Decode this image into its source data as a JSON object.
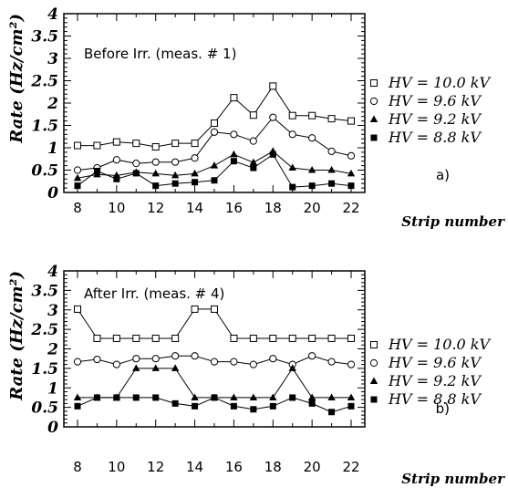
{
  "chart_data": [
    {
      "type": "line",
      "title": "Before Irr. (meas. # 1)",
      "panel_label": "a)",
      "xlabel": "Strip number",
      "ylabel": "Rate (Hz/cm²)",
      "xlim": [
        7.3,
        22.7
      ],
      "ylim": [
        0,
        4
      ],
      "xticks": [
        "8",
        "10",
        "12",
        "14",
        "16",
        "18",
        "20",
        "22"
      ],
      "yticks": [
        "0",
        "0.5",
        "1",
        "1.5",
        "2",
        "2.5",
        "3",
        "3.5",
        "4"
      ],
      "x": [
        8,
        9,
        10,
        11,
        12,
        13,
        14,
        15,
        16,
        17,
        18,
        19,
        20,
        21,
        22
      ],
      "series": [
        {
          "name": "HV = 10.0 kV",
          "marker": "open-square",
          "values": [
            1.05,
            1.05,
            1.13,
            1.1,
            1.02,
            1.1,
            1.1,
            1.55,
            2.12,
            1.73,
            2.38,
            1.72,
            1.72,
            1.65,
            1.6
          ]
        },
        {
          "name": "HV = 9.6 kV",
          "marker": "open-circle",
          "values": [
            0.5,
            0.55,
            0.73,
            0.65,
            0.68,
            0.68,
            0.77,
            1.35,
            1.3,
            1.15,
            1.68,
            1.3,
            1.22,
            0.92,
            0.82
          ]
        },
        {
          "name": "HV = 9.2 kV",
          "marker": "filled-triangle",
          "values": [
            0.32,
            0.4,
            0.38,
            0.45,
            0.42,
            0.38,
            0.42,
            0.6,
            0.85,
            0.67,
            0.92,
            0.55,
            0.5,
            0.5,
            0.42
          ]
        },
        {
          "name": "HV = 8.8 kV",
          "marker": "filled-square",
          "values": [
            0.15,
            0.48,
            0.3,
            0.43,
            0.15,
            0.2,
            0.23,
            0.27,
            0.7,
            0.55,
            0.85,
            0.12,
            0.15,
            0.2,
            0.15
          ]
        }
      ]
    },
    {
      "type": "line",
      "title": "After Irr. (meas. # 4)",
      "panel_label": "b)",
      "xlabel": "Strip number",
      "ylabel": "Rate (Hz/cm²)",
      "xlim": [
        7.3,
        22.7
      ],
      "ylim": [
        0,
        4
      ],
      "xticks": [
        "8",
        "10",
        "12",
        "14",
        "16",
        "18",
        "20",
        "22"
      ],
      "yticks": [
        "0",
        "0.5",
        "1",
        "1.5",
        "2",
        "2.5",
        "3",
        "3.5",
        "4"
      ],
      "x": [
        8,
        9,
        10,
        11,
        12,
        13,
        14,
        15,
        16,
        17,
        18,
        19,
        20,
        21,
        22
      ],
      "series": [
        {
          "name": "HV = 10.0 kV",
          "marker": "open-square",
          "values": [
            3.02,
            2.27,
            2.27,
            2.27,
            2.27,
            2.27,
            3.02,
            3.02,
            2.27,
            2.27,
            2.27,
            2.27,
            2.27,
            2.27,
            2.27
          ]
        },
        {
          "name": "HV = 9.6 kV",
          "marker": "open-circle",
          "values": [
            1.67,
            1.73,
            1.6,
            1.75,
            1.75,
            1.82,
            1.82,
            1.67,
            1.67,
            1.6,
            1.75,
            1.6,
            1.82,
            1.67,
            1.6
          ]
        },
        {
          "name": "HV = 9.2 kV",
          "marker": "filled-triangle",
          "values": [
            0.75,
            0.75,
            0.75,
            1.5,
            1.5,
            1.5,
            0.75,
            0.75,
            0.75,
            0.75,
            0.75,
            1.5,
            0.75,
            0.75,
            0.75
          ]
        },
        {
          "name": "HV = 8.8 kV",
          "marker": "filled-square",
          "values": [
            0.53,
            0.75,
            0.75,
            0.75,
            0.75,
            0.6,
            0.53,
            0.75,
            0.53,
            0.45,
            0.53,
            0.75,
            0.6,
            0.38,
            0.53
          ]
        }
      ]
    }
  ]
}
